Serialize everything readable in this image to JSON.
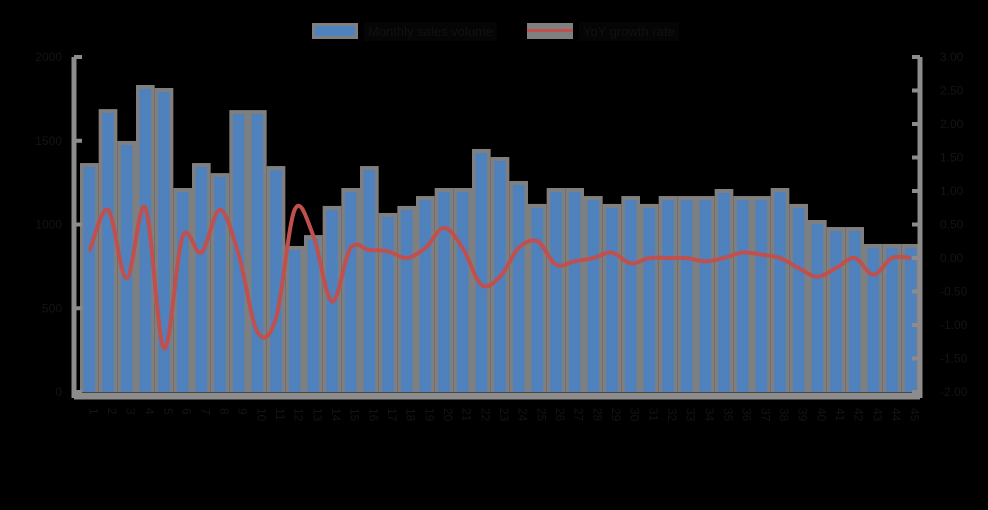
{
  "legend": {
    "bar_label": "Monthly sales volume",
    "line_label": "YoY growth rate"
  },
  "colors": {
    "bar": "#4f81bd",
    "bar_outline": "#7f7f7f",
    "line": "#c0504d",
    "background": "#000000",
    "plot_bg": "#000000",
    "axis": "#8c8c8c"
  },
  "chart_data": {
    "type": "bar",
    "title": "",
    "xlabel": "",
    "ylabel": "",
    "y2label": "",
    "ylim": [
      0,
      2000
    ],
    "y2lim": [
      -2.0,
      3.0
    ],
    "yticks": [
      0,
      500,
      1000,
      1500,
      2000
    ],
    "y2ticks": [
      -2.0,
      -1.5,
      -1.0,
      -0.5,
      0.0,
      0.5,
      1.0,
      1.5,
      2.0,
      2.5,
      3.0
    ],
    "grid": false,
    "legend_position": "top",
    "categories": [
      "1",
      "2",
      "3",
      "4",
      "5",
      "6",
      "7",
      "8",
      "9",
      "10",
      "11",
      "12",
      "13",
      "14",
      "15",
      "16",
      "17",
      "18",
      "19",
      "20",
      "21",
      "22",
      "23",
      "24",
      "25",
      "26",
      "27",
      "28",
      "29",
      "30",
      "31",
      "32",
      "33",
      "34",
      "35",
      "36",
      "37",
      "38",
      "39",
      "40",
      "41",
      "42",
      "43",
      "44",
      "45"
    ],
    "series": [
      {
        "name": "Monthly sales volume",
        "type": "bar",
        "axis": "left",
        "values": [
          1343,
          1665,
          1475,
          1809,
          1791,
          1194,
          1343,
          1283,
          1659,
          1659,
          1325,
          848,
          913,
          1087,
          1194,
          1325,
          1045,
          1087,
          1146,
          1194,
          1194,
          1427,
          1379,
          1236,
          1099,
          1194,
          1194,
          1146,
          1099,
          1146,
          1099,
          1146,
          1146,
          1146,
          1188,
          1146,
          1146,
          1194,
          1099,
          1003,
          961,
          961,
          860,
          860,
          860
        ]
      },
      {
        "name": "YoY growth rate",
        "type": "line",
        "axis": "right",
        "values": [
          0.1,
          0.72,
          -0.3,
          0.75,
          -1.35,
          0.32,
          0.08,
          0.72,
          0.05,
          -1.1,
          -0.9,
          0.72,
          0.33,
          -0.65,
          0.15,
          0.12,
          0.1,
          0.0,
          0.15,
          0.45,
          0.15,
          -0.4,
          -0.28,
          0.15,
          0.25,
          -0.1,
          -0.05,
          0.0,
          0.08,
          -0.08,
          0.0,
          0.0,
          0.0,
          -0.05,
          0.0,
          0.08,
          0.05,
          0.0,
          -0.15,
          -0.28,
          -0.15,
          0.0,
          -0.25,
          0.0,
          0.0
        ]
      }
    ]
  }
}
